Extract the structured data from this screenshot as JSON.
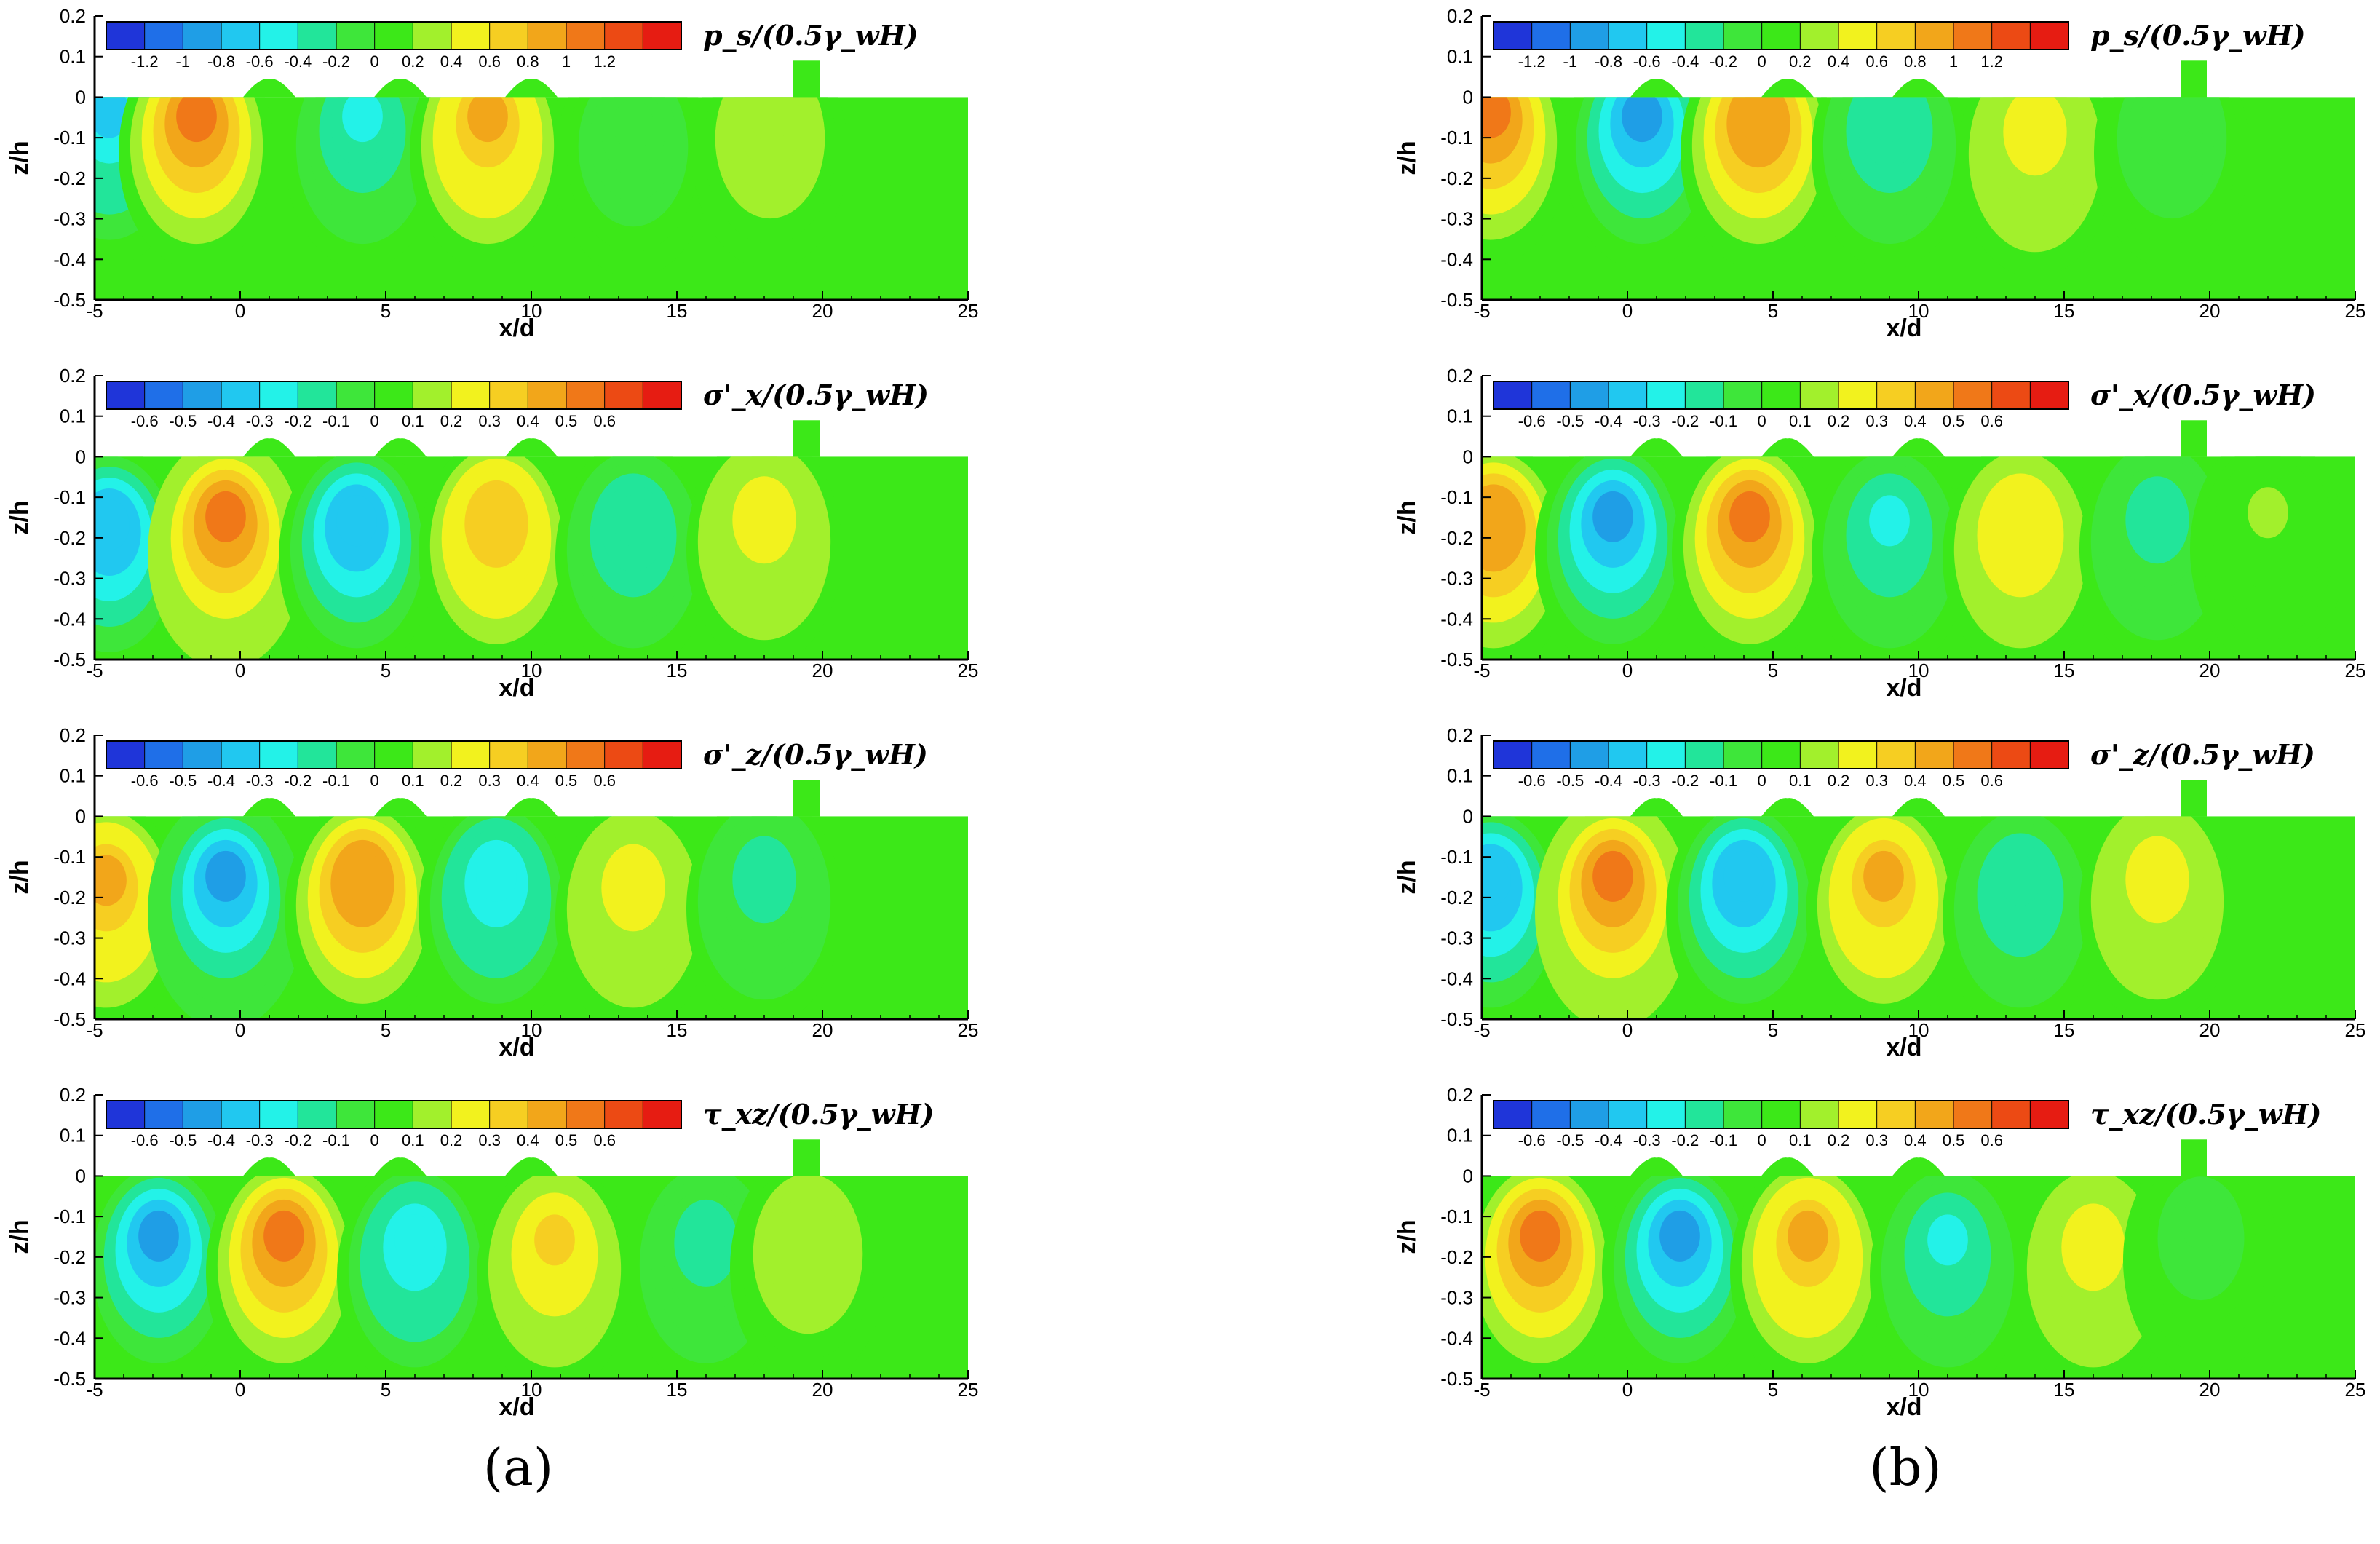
{
  "chart_data": {
    "type": "heatmap",
    "description_keys_only": "contour field panels",
    "x_axis": {
      "label": "x/d",
      "range": [
        -5,
        25
      ],
      "ticks": [
        "-5",
        "0",
        "5",
        "10",
        "15",
        "20",
        "25"
      ]
    },
    "y_axis": {
      "label": "z/h",
      "range": [
        -0.5,
        0.2
      ],
      "ticks": [
        "0.2",
        "0.1",
        "0",
        "-0.1",
        "-0.2",
        "-0.3",
        "-0.4",
        "-0.5"
      ]
    },
    "colormap": [
      "#1f35d9",
      "#1f6fe8",
      "#1f9ee6",
      "#21c8f0",
      "#23f2e8",
      "#22e59a",
      "#3ee63a",
      "#3ce818",
      "#a2f02c",
      "#f2f21e",
      "#f6ce22",
      "#f2a61a",
      "#f07818",
      "#ec4a14",
      "#e61c12"
    ],
    "columns": [
      {
        "caption": "(a)",
        "panels": [
          {
            "variable": "p_s/(0.5γ_wH)",
            "levels": [
              "-1.2",
              "-1",
              "-0.8",
              "-0.6",
              "-0.4",
              "-0.2",
              "0",
              "0.2",
              "0.4",
              "0.6",
              "0.8",
              "1",
              "1.2"
            ],
            "vmax": 1.3,
            "blobs": [
              {
                "x": -4.5,
                "z": -0.02,
                "v": -0.8
              },
              {
                "x": -1.5,
                "z": -0.03,
                "v": 1.0
              },
              {
                "x": 4.2,
                "z": -0.03,
                "v": -0.6
              },
              {
                "x": 8.5,
                "z": -0.03,
                "v": 0.8
              },
              {
                "x": 13.5,
                "z": -0.05,
                "v": -0.3
              },
              {
                "x": 18.2,
                "z": -0.03,
                "v": 0.3
              }
            ]
          },
          {
            "variable": "σ'_x/(0.5γ_wH)",
            "levels": [
              "-0.6",
              "-0.5",
              "-0.4",
              "-0.3",
              "-0.2",
              "-0.1",
              "0",
              "0.1",
              "0.2",
              "0.3",
              "0.4",
              "0.5",
              "0.6"
            ],
            "vmax": 0.65,
            "blobs": [
              {
                "x": -4.5,
                "z": -0.15,
                "v": -0.45
              },
              {
                "x": -0.5,
                "z": -0.13,
                "v": 0.55
              },
              {
                "x": 4.0,
                "z": -0.14,
                "v": -0.45
              },
              {
                "x": 8.8,
                "z": -0.13,
                "v": 0.35
              },
              {
                "x": 13.5,
                "z": -0.14,
                "v": -0.25
              },
              {
                "x": 18.0,
                "z": -0.12,
                "v": 0.2
              }
            ]
          },
          {
            "variable": "σ'_z/(0.5γ_wH)",
            "levels": [
              "-0.6",
              "-0.5",
              "-0.4",
              "-0.3",
              "-0.2",
              "-0.1",
              "0",
              "0.1",
              "0.2",
              "0.3",
              "0.4",
              "0.5",
              "0.6"
            ],
            "vmax": 0.65,
            "blobs": [
              {
                "x": -4.6,
                "z": -0.14,
                "v": 0.4
              },
              {
                "x": -0.5,
                "z": -0.13,
                "v": -0.55
              },
              {
                "x": 4.2,
                "z": -0.13,
                "v": 0.45
              },
              {
                "x": 8.8,
                "z": -0.13,
                "v": -0.35
              },
              {
                "x": 13.5,
                "z": -0.14,
                "v": 0.22
              },
              {
                "x": 18.0,
                "z": -0.12,
                "v": -0.2
              }
            ]
          },
          {
            "variable": "τ_xz/(0.5γ_wH)",
            "levels": [
              "-0.6",
              "-0.5",
              "-0.4",
              "-0.3",
              "-0.2",
              "-0.1",
              "0",
              "0.1",
              "0.2",
              "0.3",
              "0.4",
              "0.5",
              "0.6"
            ],
            "vmax": 0.65,
            "blobs": [
              {
                "x": -2.8,
                "z": -0.13,
                "v": -0.5
              },
              {
                "x": 1.5,
                "z": -0.13,
                "v": 0.5
              },
              {
                "x": 6.0,
                "z": -0.14,
                "v": -0.35
              },
              {
                "x": 10.8,
                "z": -0.14,
                "v": 0.28
              },
              {
                "x": 16.0,
                "z": -0.13,
                "v": -0.22
              },
              {
                "x": 19.5,
                "z": -0.12,
                "v": 0.12
              }
            ]
          }
        ]
      },
      {
        "caption": "(b)",
        "panels": [
          {
            "variable": "p_s/(0.5γ_wH)",
            "levels": [
              "-1.2",
              "-1",
              "-0.8",
              "-0.6",
              "-0.4",
              "-0.2",
              "0",
              "0.2",
              "0.4",
              "0.6",
              "0.8",
              "1",
              "1.2"
            ],
            "vmax": 1.3,
            "blobs": [
              {
                "x": -4.7,
                "z": -0.02,
                "v": 1.0
              },
              {
                "x": 0.5,
                "z": -0.03,
                "v": -1.0
              },
              {
                "x": 4.5,
                "z": -0.03,
                "v": 0.9
              },
              {
                "x": 9.0,
                "z": -0.03,
                "v": -0.5
              },
              {
                "x": 14.0,
                "z": -0.05,
                "v": 0.4
              },
              {
                "x": 18.7,
                "z": -0.03,
                "v": -0.3
              }
            ]
          },
          {
            "variable": "σ'_x/(0.5γ_wH)",
            "levels": [
              "-0.6",
              "-0.5",
              "-0.4",
              "-0.3",
              "-0.2",
              "-0.1",
              "0",
              "0.1",
              "0.2",
              "0.3",
              "0.4",
              "0.5",
              "0.6"
            ],
            "vmax": 0.65,
            "blobs": [
              {
                "x": -4.6,
                "z": -0.14,
                "v": 0.45
              },
              {
                "x": -0.5,
                "z": -0.13,
                "v": -0.5
              },
              {
                "x": 4.2,
                "z": -0.13,
                "v": 0.5
              },
              {
                "x": 9.0,
                "z": -0.14,
                "v": -0.3
              },
              {
                "x": 13.5,
                "z": -0.14,
                "v": 0.25
              },
              {
                "x": 18.2,
                "z": -0.12,
                "v": -0.2
              },
              {
                "x": 22.0,
                "z": -0.12,
                "v": 0.06
              }
            ]
          },
          {
            "variable": "σ'_z/(0.5γ_wH)",
            "levels": [
              "-0.6",
              "-0.5",
              "-0.4",
              "-0.3",
              "-0.2",
              "-0.1",
              "0",
              "0.1",
              "0.2",
              "0.3",
              "0.4",
              "0.5",
              "0.6"
            ],
            "vmax": 0.65,
            "blobs": [
              {
                "x": -4.7,
                "z": -0.14,
                "v": -0.45
              },
              {
                "x": -0.5,
                "z": -0.13,
                "v": 0.55
              },
              {
                "x": 4.0,
                "z": -0.13,
                "v": -0.45
              },
              {
                "x": 8.8,
                "z": -0.13,
                "v": 0.38
              },
              {
                "x": 13.5,
                "z": -0.14,
                "v": -0.25
              },
              {
                "x": 18.2,
                "z": -0.12,
                "v": 0.2
              }
            ]
          },
          {
            "variable": "τ_xz/(0.5γ_wH)",
            "levels": [
              "-0.6",
              "-0.5",
              "-0.4",
              "-0.3",
              "-0.2",
              "-0.1",
              "0",
              "0.1",
              "0.2",
              "0.3",
              "0.4",
              "0.5",
              "0.6"
            ],
            "vmax": 0.65,
            "blobs": [
              {
                "x": -3.0,
                "z": -0.13,
                "v": 0.5
              },
              {
                "x": 1.8,
                "z": -0.13,
                "v": -0.5
              },
              {
                "x": 6.2,
                "z": -0.13,
                "v": 0.38
              },
              {
                "x": 11.0,
                "z": -0.14,
                "v": -0.3
              },
              {
                "x": 16.0,
                "z": -0.14,
                "v": 0.24
              },
              {
                "x": 19.7,
                "z": -0.1,
                "v": -0.1
              }
            ]
          }
        ]
      }
    ]
  }
}
